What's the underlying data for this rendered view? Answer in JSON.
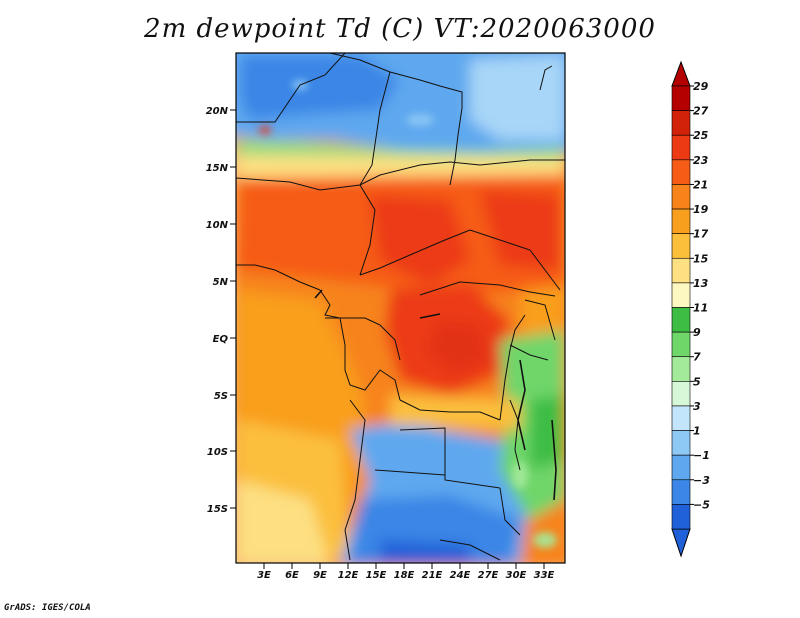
{
  "title": "2m dewpoint Td (C) VT:2020063000",
  "credit": "GrADS: IGES/COLA",
  "map": {
    "lat_labels": [
      "20N",
      "15N",
      "10N",
      "5N",
      "EQ",
      "5S",
      "10S",
      "15S"
    ],
    "lon_labels": [
      "3E",
      "6E",
      "9E",
      "12E",
      "15E",
      "18E",
      "21E",
      "24E",
      "27E",
      "30E",
      "33E"
    ]
  },
  "colorbar": {
    "labels": [
      "29",
      "27",
      "25",
      "23",
      "21",
      "19",
      "17",
      "15",
      "13",
      "11",
      "9",
      "7",
      "5",
      "3",
      "1",
      "−1",
      "−3",
      "−5"
    ],
    "colors": [
      "#b40000",
      "#d2220a",
      "#ec3b14",
      "#f65c16",
      "#f7831a",
      "#f99f1e",
      "#fbbf3c",
      "#fde082",
      "#fdf8c2",
      "#3dbd44",
      "#6fd66a",
      "#a4ea9b",
      "#d6f7d8",
      "#c2e5fb",
      "#8ec9f5",
      "#5fa8ef",
      "#3b86e6",
      "#2060d8"
    ]
  },
  "icons": {
    "arrow_top": "triangle-up",
    "arrow_bottom": "triangle-down"
  }
}
